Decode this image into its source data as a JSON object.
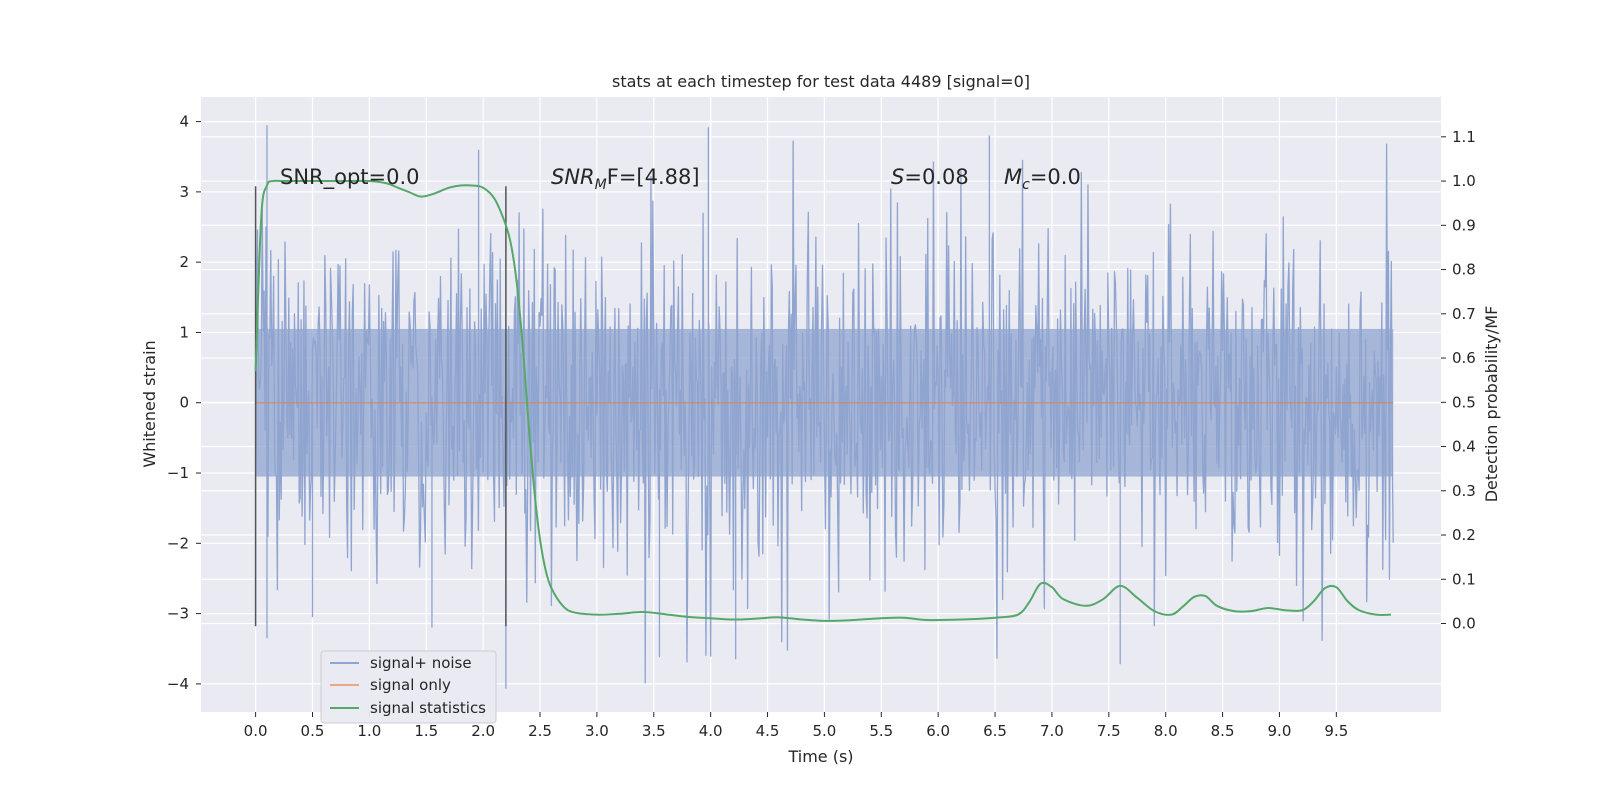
{
  "chart_data": {
    "type": "line",
    "title": "stats at each timestep for test data 4489 [signal=0]",
    "xlabel": "Time (s)",
    "ylabel_left": "Whitened strain",
    "ylabel_right": "Detection probability/MF",
    "xlim": [
      -0.48,
      10.42
    ],
    "ylim_left": [
      -4.4,
      4.35
    ],
    "ylim_right": [
      -0.2,
      1.19
    ],
    "x_ticks": [
      0.0,
      0.5,
      1.0,
      1.5,
      2.0,
      2.5,
      3.0,
      3.5,
      4.0,
      4.5,
      5.0,
      5.5,
      6.0,
      6.5,
      7.0,
      7.5,
      8.0,
      8.5,
      9.0,
      9.5
    ],
    "x_tick_labels": [
      "0.0",
      "0.5",
      "1.0",
      "1.5",
      "2.0",
      "2.5",
      "3.0",
      "3.5",
      "4.0",
      "4.5",
      "5.0",
      "5.5",
      "6.0",
      "6.5",
      "7.0",
      "7.5",
      "8.0",
      "8.5",
      "9.0",
      "9.5"
    ],
    "y_left_ticks": [
      -4,
      -3,
      -2,
      -1,
      0,
      1,
      2,
      3,
      4
    ],
    "y_left_tick_labels": [
      "−4",
      "−3",
      "−2",
      "−1",
      "0",
      "1",
      "2",
      "3",
      "4"
    ],
    "y_right_ticks": [
      0.0,
      0.1,
      0.2,
      0.3,
      0.4,
      0.5,
      0.6,
      0.7,
      0.8,
      0.9,
      1.0,
      1.1
    ],
    "y_right_tick_labels": [
      "0.0",
      "0.1",
      "0.2",
      "0.3",
      "0.4",
      "0.5",
      "0.6",
      "0.7",
      "0.8",
      "0.9",
      "1.0",
      "1.1"
    ],
    "grid": true,
    "legend": {
      "placement": "lower-left",
      "entries": [
        "signal+ noise",
        "signal only",
        "signal statistics"
      ]
    },
    "annotations": {
      "snr_opt": "SNR_opt=0.0",
      "snr_mf_base": "SNR",
      "snr_mf_sub": "M",
      "snr_mf_tail": "F=[4.88]",
      "s_base": "S",
      "s_tail": "=0.08",
      "mc_base": "M",
      "mc_sub": "c",
      "mc_tail": "=0.0"
    },
    "vertical_markers": [
      0.0,
      2.2
    ],
    "vertical_marker_range": [
      -3.18,
      3.08
    ],
    "series": [
      {
        "name": "signal+ noise",
        "axis": "left",
        "color": "#8fa4cf",
        "x_range": [
          0.0,
          10.0
        ],
        "typical_amplitude": 1.3,
        "y_min": -4.07,
        "y_max": 3.95,
        "peaks": [
          {
            "x": 0.1,
            "y": 3.95
          },
          {
            "x": 0.1,
            "y": -3.35
          },
          {
            "x": 1.96,
            "y": 3.6
          },
          {
            "x": 2.2,
            "y": -4.07
          },
          {
            "x": 3.55,
            "y": -3.62
          },
          {
            "x": 3.98,
            "y": 3.92
          },
          {
            "x": 4.22,
            "y": -3.65
          },
          {
            "x": 6.45,
            "y": 3.8
          },
          {
            "x": 7.6,
            "y": -3.72
          },
          {
            "x": 1.55,
            "y": -3.2
          },
          {
            "x": 0.5,
            "y": -3.05
          }
        ]
      },
      {
        "name": "signal only",
        "axis": "left",
        "color": "#dd8452",
        "x": [
          0.0,
          10.0
        ],
        "values": [
          0.0,
          0.0
        ]
      },
      {
        "name": "signal statistics",
        "axis": "right",
        "color": "#55a868",
        "x": [
          0.0,
          0.05,
          0.1,
          0.15,
          0.25,
          0.5,
          0.75,
          1.0,
          1.15,
          1.25,
          1.35,
          1.45,
          1.55,
          1.7,
          1.8,
          1.9,
          2.0,
          2.1,
          2.2,
          2.25,
          2.3,
          2.35,
          2.4,
          2.45,
          2.5,
          2.55,
          2.6,
          2.7,
          2.8,
          3.0,
          3.2,
          3.4,
          3.6,
          3.8,
          4.0,
          4.2,
          4.4,
          4.6,
          4.8,
          5.0,
          5.2,
          5.5,
          5.7,
          5.9,
          6.2,
          6.5,
          6.7,
          6.8,
          6.9,
          7.0,
          7.1,
          7.3,
          7.45,
          7.6,
          7.75,
          7.9,
          8.05,
          8.15,
          8.25,
          8.35,
          8.45,
          8.6,
          8.75,
          8.9,
          9.05,
          9.2,
          9.3,
          9.4,
          9.5,
          9.6,
          9.7,
          9.85,
          9.98
        ],
        "values": [
          0.57,
          0.92,
          0.99,
          1.0,
          1.0,
          1.0,
          1.0,
          1.0,
          0.995,
          0.985,
          0.975,
          0.965,
          0.97,
          0.985,
          0.99,
          0.99,
          0.985,
          0.96,
          0.9,
          0.85,
          0.76,
          0.62,
          0.45,
          0.3,
          0.19,
          0.12,
          0.08,
          0.04,
          0.025,
          0.02,
          0.022,
          0.026,
          0.021,
          0.015,
          0.012,
          0.009,
          0.011,
          0.014,
          0.009,
          0.006,
          0.007,
          0.012,
          0.013,
          0.008,
          0.009,
          0.013,
          0.02,
          0.048,
          0.09,
          0.082,
          0.055,
          0.04,
          0.055,
          0.085,
          0.058,
          0.028,
          0.02,
          0.038,
          0.06,
          0.062,
          0.04,
          0.028,
          0.028,
          0.035,
          0.03,
          0.03,
          0.05,
          0.08,
          0.082,
          0.05,
          0.03,
          0.02,
          0.02
        ]
      }
    ]
  }
}
